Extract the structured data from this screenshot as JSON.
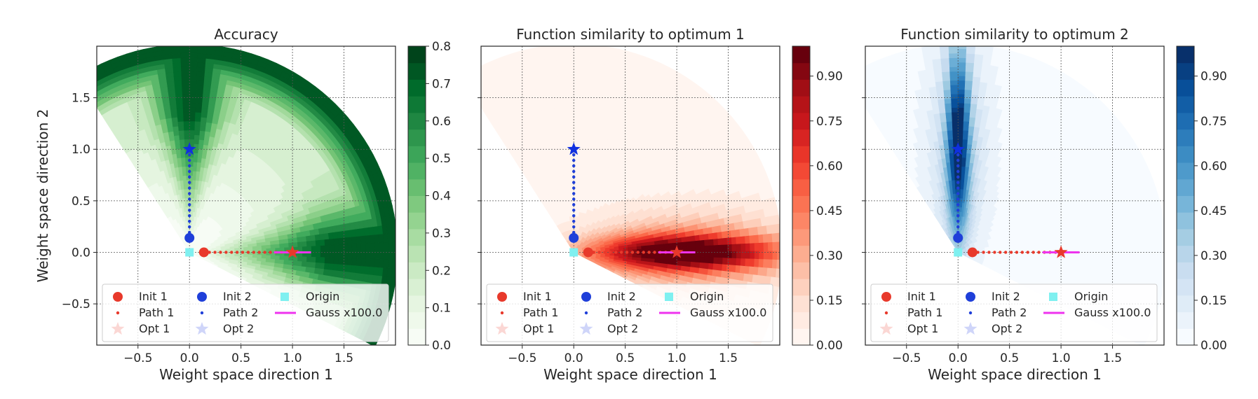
{
  "chart_data": [
    {
      "type": "contour",
      "title": "Accuracy",
      "xlabel": "Weight space direction 1",
      "ylabel": "Weight space direction 2",
      "xlim": [
        -0.9,
        2.0
      ],
      "ylim": [
        -0.9,
        2.0
      ],
      "xticks": [
        -0.5,
        0.0,
        0.5,
        1.0,
        1.5
      ],
      "xtick_labels": [
        "−0.5",
        "0.0",
        "0.5",
        "1.0",
        "1.5"
      ],
      "yticks": [
        -0.5,
        0.0,
        0.5,
        1.0,
        1.5
      ],
      "ytick_labels": [
        "−0.5",
        "0.0",
        "0.5",
        "1.0",
        "1.5"
      ],
      "grid": true,
      "colormap": "Greens",
      "colorbar": {
        "min": 0.0,
        "max": 0.8,
        "ticks": [
          0.0,
          0.1,
          0.2,
          0.3,
          0.4,
          0.5,
          0.6,
          0.7,
          0.8
        ],
        "tick_labels": [
          "0.0",
          "0.1",
          "0.2",
          "0.3",
          "0.4",
          "0.5",
          "0.6",
          "0.7",
          "0.8"
        ]
      },
      "init1": [
        0.14,
        0.0
      ],
      "init2": [
        0.0,
        0.14
      ],
      "opt1": [
        1.0,
        0.0
      ],
      "opt2": [
        0.0,
        1.0
      ],
      "origin": [
        0.0,
        0.0
      ],
      "gauss_x": [
        0.82,
        1.18
      ],
      "gauss_y": 0.0
    },
    {
      "type": "contour",
      "title": "Function similarity to optimum 1",
      "xlabel": "Weight space direction 1",
      "ylabel": "",
      "xlim": [
        -0.9,
        2.0
      ],
      "ylim": [
        -0.9,
        2.0
      ],
      "xticks": [
        -0.5,
        0.0,
        0.5,
        1.0,
        1.5
      ],
      "xtick_labels": [
        "−0.5",
        "0.0",
        "0.5",
        "1.0",
        "1.5"
      ],
      "yticks": [
        -0.5,
        0.0,
        0.5,
        1.0,
        1.5
      ],
      "ytick_labels": [],
      "grid": true,
      "colormap": "Reds",
      "colorbar": {
        "min": 0.0,
        "max": 1.0,
        "ticks": [
          0.0,
          0.15,
          0.3,
          0.45,
          0.6,
          0.75,
          0.9
        ],
        "tick_labels": [
          "0.00",
          "0.15",
          "0.30",
          "0.45",
          "0.60",
          "0.75",
          "0.90"
        ]
      },
      "init1": [
        0.14,
        0.0
      ],
      "init2": [
        0.0,
        0.14
      ],
      "opt1": [
        1.0,
        0.0
      ],
      "opt2": [
        0.0,
        1.0
      ],
      "origin": [
        0.0,
        0.0
      ],
      "gauss_x": [
        0.82,
        1.18
      ],
      "gauss_y": 0.0
    },
    {
      "type": "contour",
      "title": "Function similarity to optimum 2",
      "xlabel": "Weight space direction 1",
      "ylabel": "",
      "xlim": [
        -0.9,
        2.0
      ],
      "ylim": [
        -0.9,
        2.0
      ],
      "xticks": [
        -0.5,
        0.0,
        0.5,
        1.0,
        1.5
      ],
      "xtick_labels": [
        "−0.5",
        "0.0",
        "0.5",
        "1.0",
        "1.5"
      ],
      "yticks": [
        -0.5,
        0.0,
        0.5,
        1.0,
        1.5
      ],
      "ytick_labels": [],
      "grid": true,
      "colormap": "Blues",
      "colorbar": {
        "min": 0.0,
        "max": 1.0,
        "ticks": [
          0.0,
          0.15,
          0.3,
          0.45,
          0.6,
          0.75,
          0.9
        ],
        "tick_labels": [
          "0.00",
          "0.15",
          "0.30",
          "0.45",
          "0.60",
          "0.75",
          "0.90"
        ]
      },
      "init1": [
        0.14,
        0.0
      ],
      "init2": [
        0.0,
        0.14
      ],
      "opt1": [
        1.0,
        0.0
      ],
      "opt2": [
        0.0,
        1.0
      ],
      "origin": [
        0.0,
        0.0
      ],
      "gauss_x": [
        0.82,
        1.18
      ],
      "gauss_y": 0.0
    }
  ],
  "legend": {
    "placement": "lower-left",
    "entries": [
      "Init 1",
      "Path 1",
      "Opt 1",
      "Init 2",
      "Path 2",
      "Opt 2",
      "Origin",
      "Gauss x100.0"
    ]
  },
  "colors": {
    "init1": "#e8392b",
    "init2": "#1f3fd9",
    "opt2": "#1030e0",
    "origin": "#7ff0f0",
    "gauss": "#ee33ee"
  }
}
